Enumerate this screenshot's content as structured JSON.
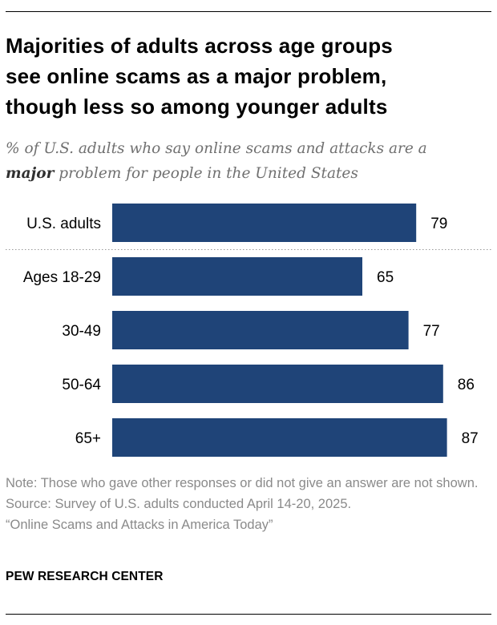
{
  "header": {
    "title_lines": [
      "Majorities of adults across age groups",
      "see online scams as a major problem,",
      "though less so among younger adults"
    ],
    "subtitle_before": "% of U.S. adults who say online scams and attacks are a",
    "subtitle_bold": "major",
    "subtitle_after": "problem for people in the United States"
  },
  "chart_data": {
    "type": "bar",
    "orientation": "horizontal",
    "title": "Majorities of adults across age groups see online scams as a major problem, though less so among younger adults",
    "subtitle": "% of U.S. adults who say online scams and attacks are a major problem for people in the United States",
    "categories": [
      "U.S. adults",
      "Ages 18-29",
      "30-49",
      "50-64",
      "65+"
    ],
    "values": [
      79,
      65,
      77,
      86,
      87
    ],
    "xlim": [
      0,
      100
    ],
    "xlabel": "",
    "ylabel": "",
    "grid": false,
    "bar_color": "#1f4478",
    "divider_after_category": "U.S. adults"
  },
  "footer": {
    "note": "Note: Those who gave other responses or did not give an answer are not shown.",
    "source": "Source: Survey of U.S. adults conducted April 14-20, 2025.",
    "report": "“Online Scams and Attacks in America Today”",
    "brand": "PEW RESEARCH CENTER"
  }
}
